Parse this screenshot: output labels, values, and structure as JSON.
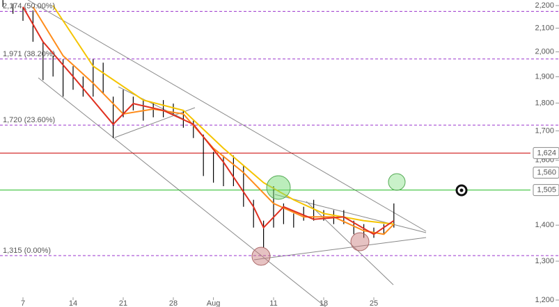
{
  "chart_data": {
    "type": "ohlc",
    "log_scale": true,
    "ylim": [
      1200,
      2200
    ],
    "yticks": [
      {
        "value": 1200,
        "label": "1,200"
      },
      {
        "value": 1300,
        "label": "1,300"
      },
      {
        "value": 1400,
        "label": "1,400"
      },
      {
        "value": 1500,
        "label": "1,500"
      },
      {
        "value": 1600,
        "label": "1,600"
      },
      {
        "value": 1700,
        "label": "1,700"
      },
      {
        "value": 1800,
        "label": "1,800"
      },
      {
        "value": 1900,
        "label": "1,900"
      },
      {
        "value": 2000,
        "label": "2,000"
      },
      {
        "value": 2100,
        "label": "2,100"
      },
      {
        "value": 2200,
        "label": "2,200"
      }
    ],
    "xlim": [
      -2.3,
      50.5
    ],
    "xticks": [
      {
        "value": 0,
        "label": "7"
      },
      {
        "value": 5,
        "label": "14"
      },
      {
        "value": 10,
        "label": "21"
      },
      {
        "value": 15,
        "label": "28"
      },
      {
        "value": 19,
        "label": "Aug"
      },
      {
        "value": 25,
        "label": "11"
      },
      {
        "value": 30,
        "label": "18"
      },
      {
        "value": 35,
        "label": "25"
      }
    ],
    "bars": {
      "color": "#000000",
      "x": [
        -2,
        -1,
        0,
        1,
        2,
        3,
        4,
        5,
        6,
        7,
        8,
        9,
        10,
        11,
        12,
        13,
        14,
        15,
        16,
        17,
        18,
        19,
        20,
        21,
        22,
        23,
        24,
        25,
        26,
        27,
        28,
        29,
        30,
        31,
        32,
        33,
        34,
        35,
        36,
        37
      ],
      "high": [
        2225,
        2209,
        2194,
        2178,
        2042,
        1984,
        1970,
        1942,
        1901,
        1970,
        1956,
        1824,
        1850,
        1824,
        1811,
        1798,
        1811,
        1798,
        1773,
        1736,
        1687,
        1628,
        1616,
        1616,
        1583,
        1475,
        1413,
        1517,
        1464,
        1434,
        1454,
        1475,
        1444,
        1444,
        1444,
        1413,
        1403,
        1393,
        1403,
        1464
      ],
      "low": [
        2194,
        2163,
        2132,
        2042,
        1887,
        1901,
        1824,
        1850,
        1824,
        1824,
        1837,
        1675,
        1748,
        1773,
        1736,
        1748,
        1748,
        1760,
        1711,
        1675,
        1549,
        1528,
        1517,
        1517,
        1454,
        1393,
        1337,
        1393,
        1403,
        1393,
        1413,
        1413,
        1413,
        1403,
        1403,
        1374,
        1364,
        1364,
        1374,
        1393
      ]
    },
    "series": [
      {
        "color": "#f5c400",
        "x": [
          3,
          7,
          12,
          16,
          20,
          24,
          27,
          30,
          34,
          37
        ],
        "values": [
          2200,
          1942,
          1811,
          1773,
          1640,
          1528,
          1475,
          1434,
          1413,
          1403
        ]
      },
      {
        "color": "#ff8c1a",
        "x": [
          1,
          4,
          7,
          10,
          13,
          16,
          19,
          22,
          25,
          28,
          31,
          34,
          36,
          37
        ],
        "values": [
          2194,
          1984,
          1875,
          1760,
          1778,
          1760,
          1640,
          1560,
          1464,
          1424,
          1424,
          1384,
          1374,
          1403
        ]
      },
      {
        "color": "#e03020",
        "x": [
          0,
          2,
          5,
          9,
          11,
          14,
          17,
          20,
          23,
          24,
          26,
          29,
          32,
          35,
          37
        ],
        "values": [
          2194,
          2042,
          1901,
          1723,
          1798,
          1773,
          1723,
          1594,
          1454,
          1393,
          1454,
          1417,
          1424,
          1374,
          1413
        ]
      }
    ],
    "fib_color": "#9933cc",
    "fib_levels": [
      {
        "value": 2174,
        "label": "2,174 (50.00%)"
      },
      {
        "value": 1971,
        "label": "1,971 (38.20%)"
      },
      {
        "value": 1720,
        "label": "1,720 (23.60%)"
      },
      {
        "value": 1315,
        "label": "1,315 (0.00%)"
      }
    ],
    "levels": [
      {
        "value": 1624,
        "label": "1,624",
        "color": "#cc0000"
      },
      {
        "value": 1505,
        "label": "1,505",
        "color": "#22bb22"
      }
    ],
    "tags": [
      {
        "value": 1560,
        "label": "1,560"
      }
    ]
  }
}
